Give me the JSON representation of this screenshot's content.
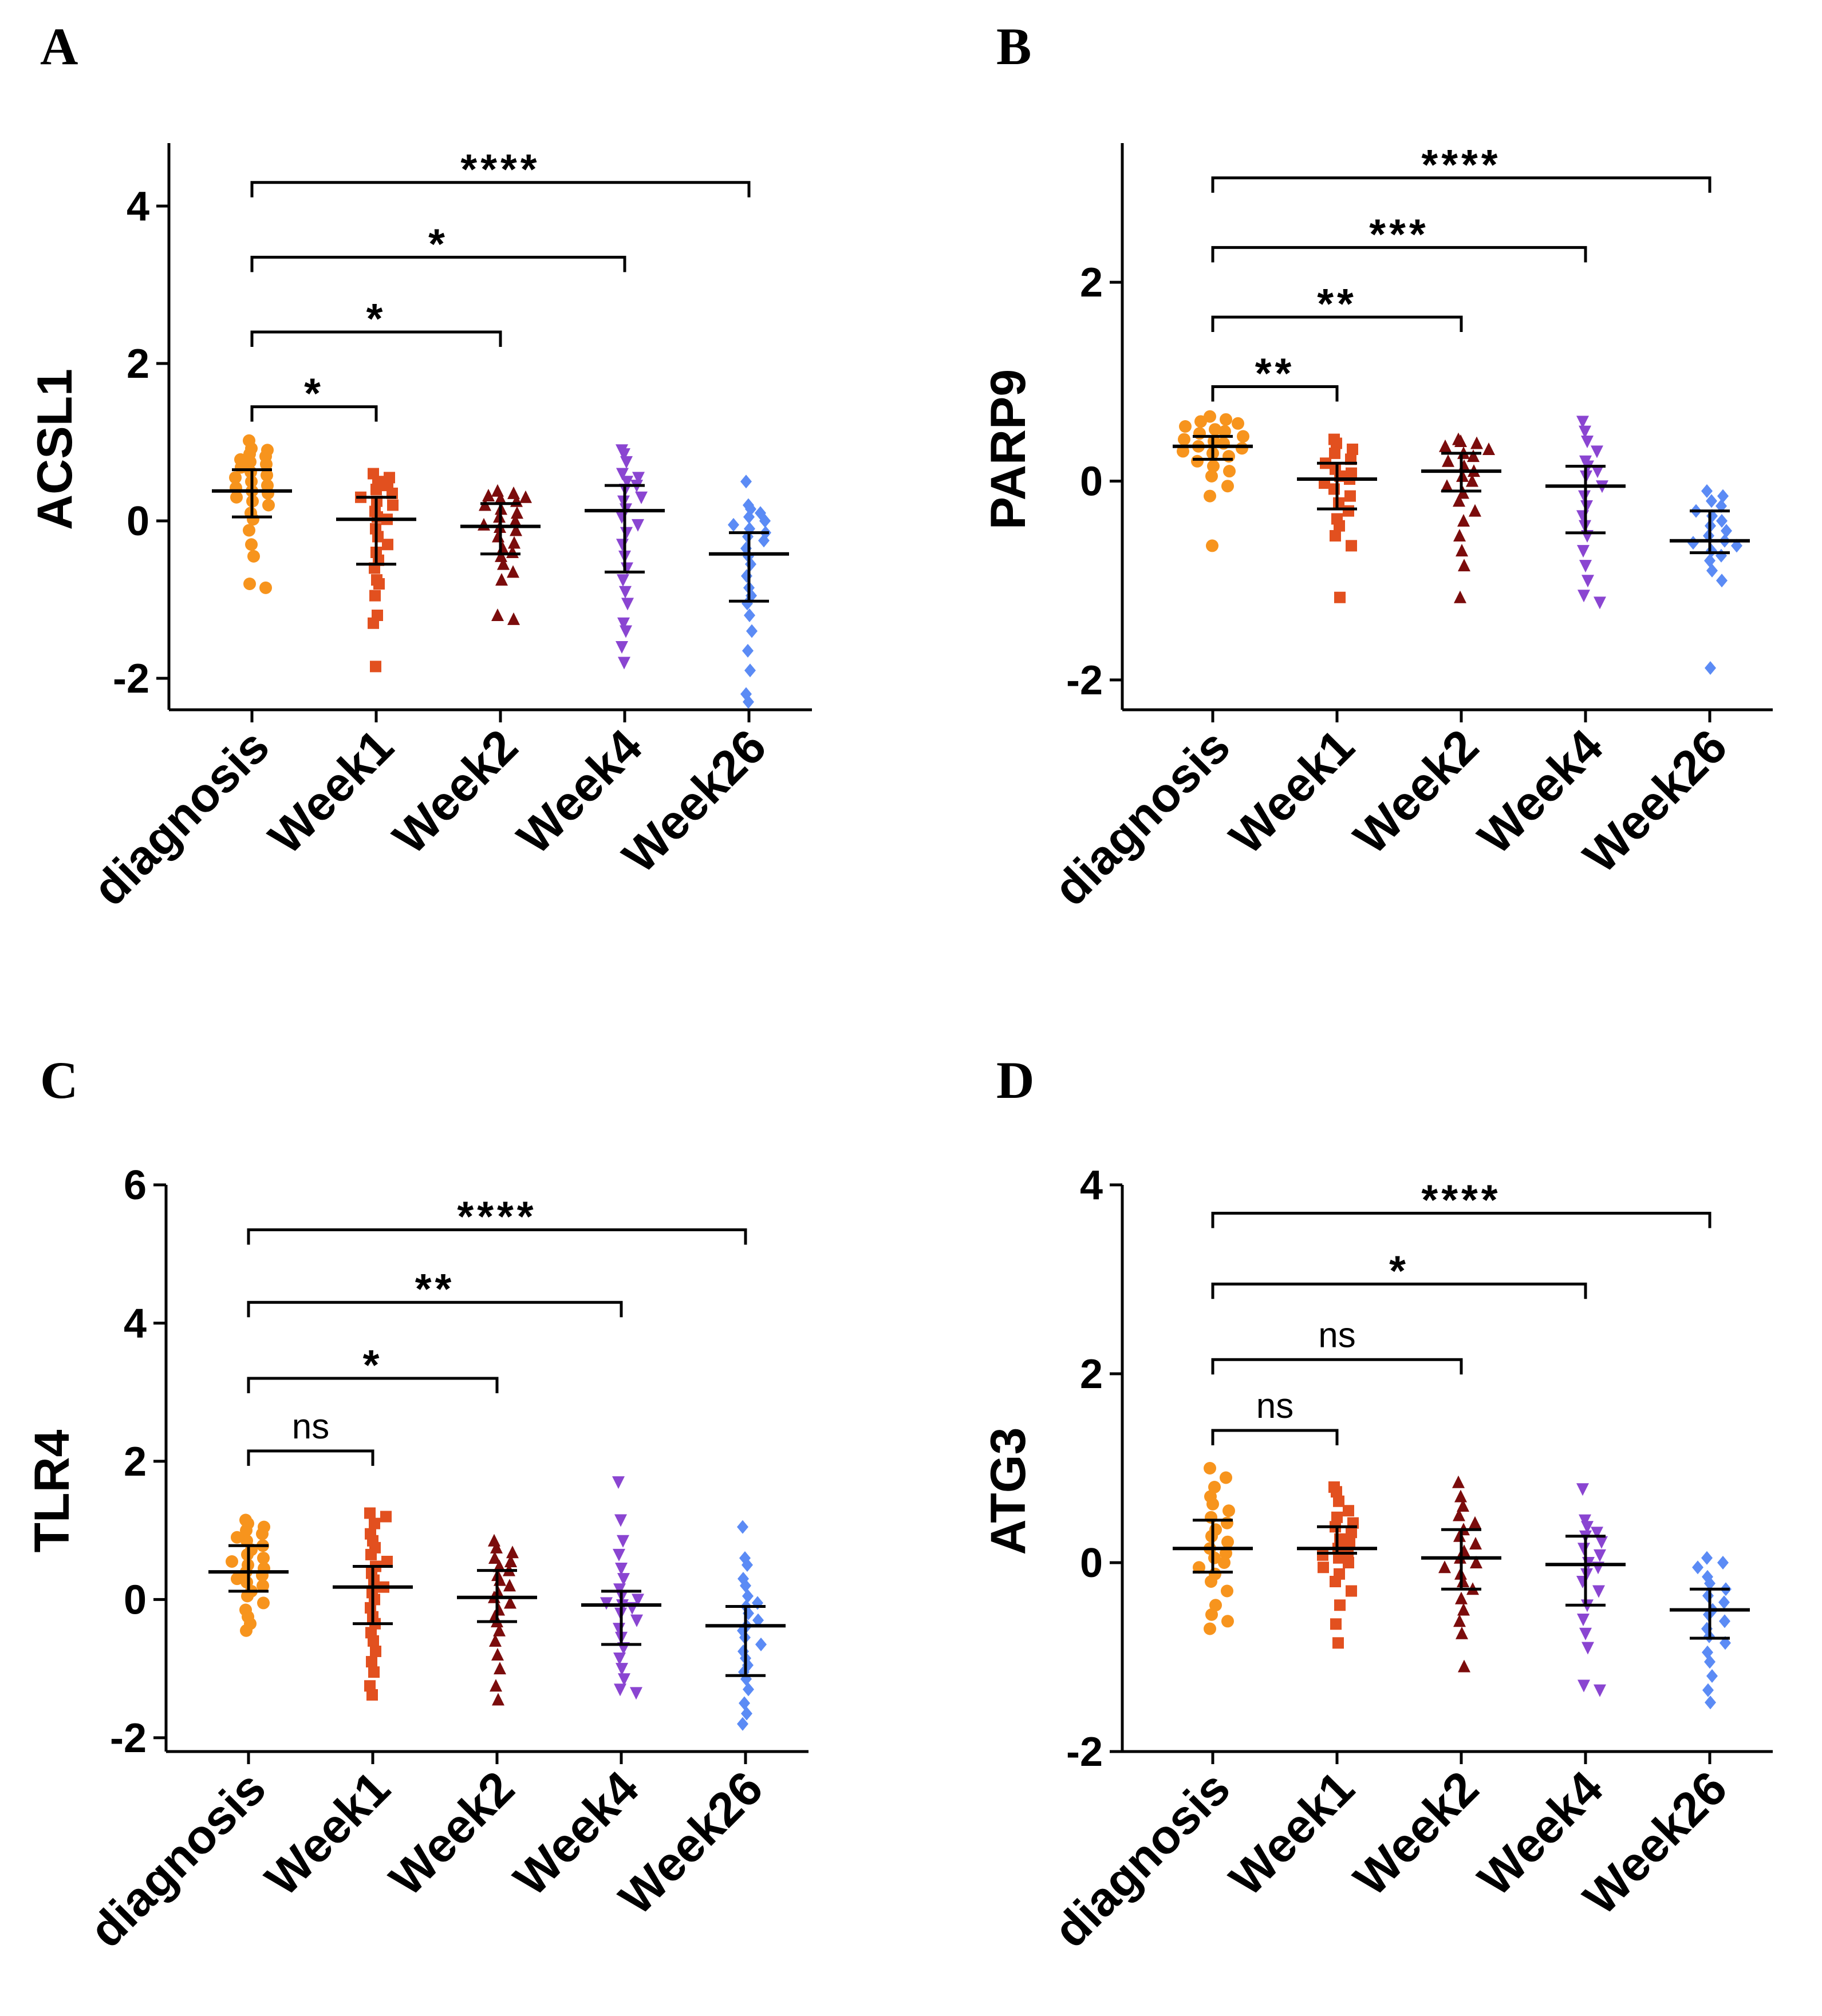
{
  "chart_data": [
    {
      "panel": "A",
      "type": "scatter",
      "ylabel": "ACSL1",
      "ylim": [
        -2.4,
        4.8
      ],
      "yticks": [
        "4",
        "2",
        "0",
        "-2"
      ],
      "categories": [
        "diagnosis",
        "Week1",
        "Week2",
        "Week4",
        "Week26"
      ],
      "series": [
        {
          "name": "diagnosis",
          "median": 0.38,
          "q1": 0.05,
          "q3": 0.65,
          "marker": "circle",
          "values": [
            1.02,
            0.92,
            0.9,
            0.85,
            0.82,
            0.78,
            0.75,
            0.72,
            0.68,
            0.62,
            0.58,
            0.55,
            0.5,
            0.45,
            0.42,
            0.38,
            0.35,
            0.3,
            0.25,
            0.2,
            0.1,
            0.02,
            -0.12,
            -0.3,
            -0.45,
            -0.8,
            -0.85
          ]
        },
        {
          "name": "Week1",
          "median": 0.02,
          "q1": -0.55,
          "q3": 0.3,
          "marker": "square",
          "values": [
            0.6,
            0.55,
            0.5,
            0.45,
            0.4,
            0.35,
            0.3,
            0.25,
            0.2,
            0.12,
            0.05,
            0.02,
            -0.1,
            -0.2,
            -0.3,
            -0.4,
            -0.5,
            -0.6,
            -0.75,
            -0.8,
            -0.95,
            -1.2,
            -1.3,
            -1.85
          ]
        },
        {
          "name": "Week2",
          "median": -0.07,
          "q1": -0.42,
          "q3": 0.22,
          "marker": "triangle-up",
          "values": [
            0.38,
            0.35,
            0.32,
            0.3,
            0.28,
            0.25,
            0.2,
            0.15,
            0.1,
            0.05,
            0.0,
            -0.05,
            -0.08,
            -0.12,
            -0.2,
            -0.28,
            -0.35,
            -0.4,
            -0.45,
            -0.55,
            -0.65,
            -0.75,
            -1.2,
            -1.25
          ]
        },
        {
          "name": "Week4",
          "median": 0.13,
          "q1": -0.65,
          "q3": 0.45,
          "marker": "triangle-down",
          "values": [
            0.9,
            0.85,
            0.75,
            0.6,
            0.55,
            0.5,
            0.45,
            0.4,
            0.3,
            0.25,
            0.15,
            0.05,
            -0.05,
            -0.15,
            -0.3,
            -0.45,
            -0.6,
            -0.75,
            -0.9,
            -1.05,
            -1.3,
            -1.4,
            -1.6,
            -1.8
          ]
        },
        {
          "name": "Week26",
          "median": -0.42,
          "q1": -1.02,
          "q3": -0.15,
          "marker": "diamond",
          "values": [
            0.5,
            0.2,
            0.15,
            0.1,
            0.05,
            0.0,
            -0.05,
            -0.1,
            -0.15,
            -0.2,
            -0.25,
            -0.35,
            -0.45,
            -0.55,
            -0.7,
            -0.85,
            -0.95,
            -1.05,
            -1.2,
            -1.4,
            -1.65,
            -1.9,
            -2.2,
            -2.3
          ]
        }
      ],
      "comparisons": [
        {
          "from": "diagnosis",
          "to": "Week1",
          "label": "*",
          "y": 1.45
        },
        {
          "from": "diagnosis",
          "to": "Week2",
          "label": "*",
          "y": 2.4
        },
        {
          "from": "diagnosis",
          "to": "Week4",
          "label": "*",
          "y": 3.35
        },
        {
          "from": "diagnosis",
          "to": "Week26",
          "label": "****",
          "y": 4.3
        }
      ]
    },
    {
      "panel": "B",
      "type": "scatter",
      "ylabel": "PARP9",
      "ylim": [
        -2.3,
        3.4
      ],
      "yticks": [
        "2",
        "0",
        "-2"
      ],
      "categories": [
        "diagnosis",
        "Week1",
        "Week2",
        "Week4",
        "Week26"
      ],
      "series": [
        {
          "name": "diagnosis",
          "median": 0.35,
          "q1": 0.22,
          "q3": 0.45,
          "marker": "circle",
          "values": [
            0.65,
            0.62,
            0.6,
            0.58,
            0.55,
            0.52,
            0.5,
            0.48,
            0.45,
            0.42,
            0.4,
            0.38,
            0.35,
            0.33,
            0.3,
            0.28,
            0.25,
            0.2,
            0.15,
            0.1,
            0.05,
            -0.05,
            -0.15,
            -0.65
          ]
        },
        {
          "name": "Week1",
          "median": 0.02,
          "q1": -0.28,
          "q3": 0.18,
          "marker": "square",
          "values": [
            0.42,
            0.38,
            0.32,
            0.28,
            0.22,
            0.18,
            0.12,
            0.08,
            0.05,
            0.02,
            -0.02,
            -0.08,
            -0.15,
            -0.22,
            -0.3,
            -0.38,
            -0.45,
            -0.55,
            -0.65,
            -1.17
          ]
        },
        {
          "name": "Week2",
          "median": 0.1,
          "q1": -0.1,
          "q3": 0.28,
          "marker": "triangle-up",
          "values": [
            0.42,
            0.4,
            0.38,
            0.35,
            0.32,
            0.28,
            0.25,
            0.2,
            0.15,
            0.1,
            0.05,
            0.0,
            -0.05,
            -0.12,
            -0.2,
            -0.3,
            -0.4,
            -0.55,
            -0.7,
            -0.85,
            -1.17
          ]
        },
        {
          "name": "Week4",
          "median": -0.05,
          "q1": -0.52,
          "q3": 0.15,
          "marker": "triangle-down",
          "values": [
            0.6,
            0.5,
            0.4,
            0.3,
            0.2,
            0.15,
            0.1,
            0.05,
            -0.05,
            -0.15,
            -0.25,
            -0.35,
            -0.45,
            -0.55,
            -0.7,
            -0.85,
            -1.0,
            -1.15,
            -1.22
          ]
        },
        {
          "name": "Week26",
          "median": -0.6,
          "q1": -0.72,
          "q3": -0.3,
          "marker": "diamond",
          "values": [
            -0.1,
            -0.15,
            -0.2,
            -0.25,
            -0.3,
            -0.35,
            -0.4,
            -0.45,
            -0.5,
            -0.55,
            -0.6,
            -0.62,
            -0.65,
            -0.7,
            -0.75,
            -0.8,
            -0.9,
            -1.0,
            -1.88
          ]
        }
      ],
      "comparisons": [
        {
          "from": "diagnosis",
          "to": "Week1",
          "label": "**",
          "y": 0.95
        },
        {
          "from": "diagnosis",
          "to": "Week2",
          "label": "**",
          "y": 1.65
        },
        {
          "from": "diagnosis",
          "to": "Week4",
          "label": "***",
          "y": 2.35
        },
        {
          "from": "diagnosis",
          "to": "Week26",
          "label": "****",
          "y": 3.05
        }
      ]
    },
    {
      "panel": "C",
      "type": "scatter",
      "ylabel": "TLR4",
      "ylim": [
        -2.2,
        6.0
      ],
      "yticks": [
        "6",
        "4",
        "2",
        "0",
        "-2"
      ],
      "categories": [
        "diagnosis",
        "Week1",
        "Week2",
        "Week4",
        "Week26"
      ],
      "series": [
        {
          "name": "diagnosis",
          "median": 0.4,
          "q1": 0.12,
          "q3": 0.78,
          "marker": "circle",
          "values": [
            1.15,
            1.1,
            1.05,
            1.0,
            0.95,
            0.9,
            0.85,
            0.78,
            0.72,
            0.65,
            0.6,
            0.55,
            0.5,
            0.45,
            0.4,
            0.35,
            0.3,
            0.25,
            0.2,
            0.12,
            0.05,
            -0.05,
            -0.15,
            -0.25,
            -0.35,
            -0.45
          ]
        },
        {
          "name": "Week1",
          "median": 0.18,
          "q1": -0.35,
          "q3": 0.48,
          "marker": "square",
          "values": [
            1.25,
            1.2,
            1.1,
            0.95,
            0.85,
            0.75,
            0.65,
            0.55,
            0.48,
            0.38,
            0.28,
            0.18,
            0.1,
            0.0,
            -0.12,
            -0.25,
            -0.35,
            -0.48,
            -0.6,
            -0.75,
            -0.9,
            -1.05,
            -1.25,
            -1.38
          ]
        },
        {
          "name": "Week2",
          "median": 0.03,
          "q1": -0.32,
          "q3": 0.42,
          "marker": "triangle-up",
          "values": [
            0.85,
            0.75,
            0.68,
            0.6,
            0.55,
            0.48,
            0.42,
            0.35,
            0.28,
            0.2,
            0.1,
            0.03,
            -0.05,
            -0.15,
            -0.25,
            -0.32,
            -0.45,
            -0.6,
            -0.8,
            -1.0,
            -1.25,
            -1.45
          ]
        },
        {
          "name": "Week4",
          "median": -0.08,
          "q1": -0.65,
          "q3": 0.12,
          "marker": "triangle-down",
          "values": [
            1.7,
            1.15,
            0.85,
            0.65,
            0.45,
            0.3,
            0.15,
            0.05,
            0.0,
            -0.05,
            -0.08,
            -0.12,
            -0.2,
            -0.3,
            -0.42,
            -0.55,
            -0.7,
            -0.85,
            -1.0,
            -1.15,
            -1.3,
            -1.35
          ]
        },
        {
          "name": "Week26",
          "median": -0.38,
          "q1": -1.1,
          "q3": -0.1,
          "marker": "diamond",
          "values": [
            1.05,
            0.6,
            0.5,
            0.3,
            0.2,
            0.05,
            -0.05,
            -0.1,
            -0.2,
            -0.3,
            -0.38,
            -0.45,
            -0.55,
            -0.65,
            -0.75,
            -0.85,
            -0.95,
            -1.05,
            -1.15,
            -1.3,
            -1.5,
            -1.65,
            -1.8
          ]
        }
      ],
      "comparisons": [
        {
          "from": "diagnosis",
          "to": "Week1",
          "label": "ns",
          "y": 2.15
        },
        {
          "from": "diagnosis",
          "to": "Week2",
          "label": "*",
          "y": 3.2
        },
        {
          "from": "diagnosis",
          "to": "Week4",
          "label": "**",
          "y": 4.3
        },
        {
          "from": "diagnosis",
          "to": "Week26",
          "label": "****",
          "y": 5.35
        }
      ]
    },
    {
      "panel": "D",
      "type": "scatter",
      "ylabel": "ATG3",
      "ylim": [
        -2.0,
        4.0
      ],
      "yticks": [
        "4",
        "2",
        "0",
        "-2"
      ],
      "categories": [
        "diagnosis",
        "Week1",
        "Week2",
        "Week4",
        "Week26"
      ],
      "series": [
        {
          "name": "diagnosis",
          "median": 0.15,
          "q1": -0.1,
          "q3": 0.45,
          "marker": "circle",
          "values": [
            1.0,
            0.9,
            0.8,
            0.7,
            0.62,
            0.55,
            0.48,
            0.42,
            0.35,
            0.28,
            0.22,
            0.15,
            0.1,
            0.05,
            0.0,
            -0.05,
            -0.12,
            -0.2,
            -0.3,
            -0.45,
            -0.55,
            -0.62,
            -0.7
          ]
        },
        {
          "name": "Week1",
          "median": 0.15,
          "q1": 0.1,
          "q3": 0.38,
          "marker": "square",
          "values": [
            0.8,
            0.75,
            0.65,
            0.55,
            0.48,
            0.42,
            0.38,
            0.32,
            0.25,
            0.2,
            0.15,
            0.12,
            0.08,
            0.05,
            0.0,
            -0.05,
            -0.12,
            -0.2,
            -0.3,
            -0.45,
            -0.65,
            -0.85
          ]
        },
        {
          "name": "Week2",
          "median": 0.05,
          "q1": -0.28,
          "q3": 0.35,
          "marker": "triangle-up",
          "values": [
            0.85,
            0.7,
            0.6,
            0.5,
            0.42,
            0.35,
            0.28,
            0.2,
            0.12,
            0.05,
            0.0,
            -0.05,
            -0.12,
            -0.2,
            -0.28,
            -0.38,
            -0.5,
            -0.62,
            -0.75,
            -1.1
          ]
        },
        {
          "name": "Week4",
          "median": -0.02,
          "q1": -0.45,
          "q3": 0.28,
          "marker": "triangle-down",
          "values": [
            0.78,
            0.45,
            0.38,
            0.32,
            0.28,
            0.22,
            0.15,
            0.08,
            0.0,
            -0.05,
            -0.12,
            -0.2,
            -0.3,
            -0.45,
            -0.6,
            -0.75,
            -0.9,
            -1.3,
            -1.35
          ]
        },
        {
          "name": "Week26",
          "median": -0.5,
          "q1": -0.8,
          "q3": -0.28,
          "marker": "diamond",
          "values": [
            0.05,
            0.0,
            -0.05,
            -0.15,
            -0.22,
            -0.28,
            -0.35,
            -0.42,
            -0.5,
            -0.55,
            -0.62,
            -0.7,
            -0.78,
            -0.85,
            -0.95,
            -1.05,
            -1.2,
            -1.35,
            -1.48
          ]
        }
      ],
      "comparisons": [
        {
          "from": "diagnosis",
          "to": "Week1",
          "label": "ns",
          "y": 1.4
        },
        {
          "from": "diagnosis",
          "to": "Week2",
          "label": "ns",
          "y": 2.15
        },
        {
          "from": "diagnosis",
          "to": "Week4",
          "label": "*",
          "y": 2.95
        },
        {
          "from": "diagnosis",
          "to": "Week26",
          "label": "****",
          "y": 3.7
        }
      ]
    }
  ],
  "colors": {
    "diagnosis": "#f7941d",
    "Week1": "#e2501f",
    "Week2": "#7b0c0c",
    "Week4": "#8a45d1",
    "Week26": "#5b8bf5"
  }
}
